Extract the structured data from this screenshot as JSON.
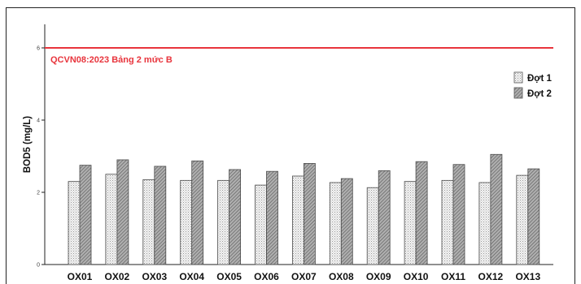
{
  "chart_data": {
    "type": "bar",
    "title": "",
    "xlabel": "",
    "ylabel": "BOD5 (mg/L)",
    "ylim": [
      0,
      6.6
    ],
    "yticks": [
      "0",
      "2",
      "4",
      "6"
    ],
    "categories": [
      "OX01",
      "OX02",
      "OX03",
      "OX04",
      "OX05",
      "OX06",
      "OX07",
      "OX08",
      "OX09",
      "OX10",
      "OX11",
      "OX12",
      "OX13"
    ],
    "series": [
      {
        "name": "Đợt 1",
        "pattern": "dots",
        "color": "#e6e6e6",
        "values": [
          2.3,
          2.5,
          2.35,
          2.33,
          2.33,
          2.2,
          2.45,
          2.27,
          2.13,
          2.3,
          2.33,
          2.27,
          2.47
        ]
      },
      {
        "name": "Đợt 2",
        "pattern": "diagonal-hatch",
        "color": "#9a9a9a",
        "values": [
          2.75,
          2.9,
          2.72,
          2.87,
          2.63,
          2.58,
          2.8,
          2.38,
          2.6,
          2.85,
          2.77,
          3.05,
          2.65
        ]
      }
    ],
    "reference_line": {
      "value": 6,
      "label": "QCVN08:2023 Bảng 2 mức B",
      "color": "#e8343c"
    },
    "legend_position": "top-right",
    "grid": false
  }
}
